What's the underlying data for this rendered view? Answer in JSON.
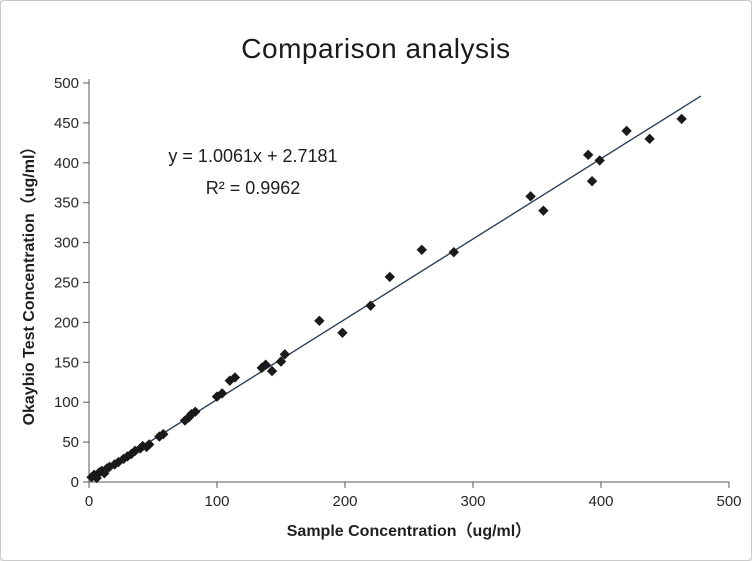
{
  "chart_data": {
    "type": "scatter",
    "title": "Comparison analysis",
    "xlabel": "Sample Concentration（ug/ml）",
    "ylabel": "Okaybio Test Concentration（ug/ml）",
    "xlim": [
      0,
      500
    ],
    "ylim": [
      0,
      500
    ],
    "x_ticks": [
      0,
      100,
      200,
      300,
      400,
      500
    ],
    "y_ticks": [
      0,
      50,
      100,
      150,
      200,
      250,
      300,
      350,
      400,
      450,
      500
    ],
    "grid": false,
    "legend": "none",
    "annotations": [
      "y = 1.0061x + 2.7181",
      "R² = 0.9962"
    ],
    "point_color": "#1a1a1a",
    "axis_color": "#595959",
    "trendline": {
      "slope": 1.0061,
      "intercept": 2.7181,
      "x_start": 0,
      "x_end": 478,
      "color": "#2e3f54"
    },
    "points": [
      [
        2,
        6
      ],
      [
        4,
        9
      ],
      [
        6,
        5
      ],
      [
        8,
        12
      ],
      [
        10,
        14
      ],
      [
        12,
        11
      ],
      [
        14,
        17
      ],
      [
        16,
        19
      ],
      [
        20,
        22
      ],
      [
        23,
        25
      ],
      [
        27,
        29
      ],
      [
        30,
        32
      ],
      [
        33,
        35
      ],
      [
        36,
        39
      ],
      [
        40,
        42
      ],
      [
        42,
        45
      ],
      [
        45,
        44
      ],
      [
        47,
        47
      ],
      [
        55,
        57
      ],
      [
        58,
        60
      ],
      [
        75,
        77
      ],
      [
        78,
        81
      ],
      [
        80,
        85
      ],
      [
        83,
        88
      ],
      [
        100,
        107
      ],
      [
        104,
        111
      ],
      [
        110,
        127
      ],
      [
        114,
        131
      ],
      [
        135,
        143
      ],
      [
        138,
        147
      ],
      [
        143,
        139
      ],
      [
        150,
        151
      ],
      [
        153,
        160
      ],
      [
        180,
        202
      ],
      [
        198,
        187
      ],
      [
        220,
        221
      ],
      [
        235,
        257
      ],
      [
        260,
        291
      ],
      [
        285,
        288
      ],
      [
        345,
        358
      ],
      [
        355,
        340
      ],
      [
        390,
        410
      ],
      [
        393,
        377
      ],
      [
        399,
        403
      ],
      [
        420,
        440
      ],
      [
        438,
        430
      ],
      [
        463,
        455
      ]
    ]
  }
}
